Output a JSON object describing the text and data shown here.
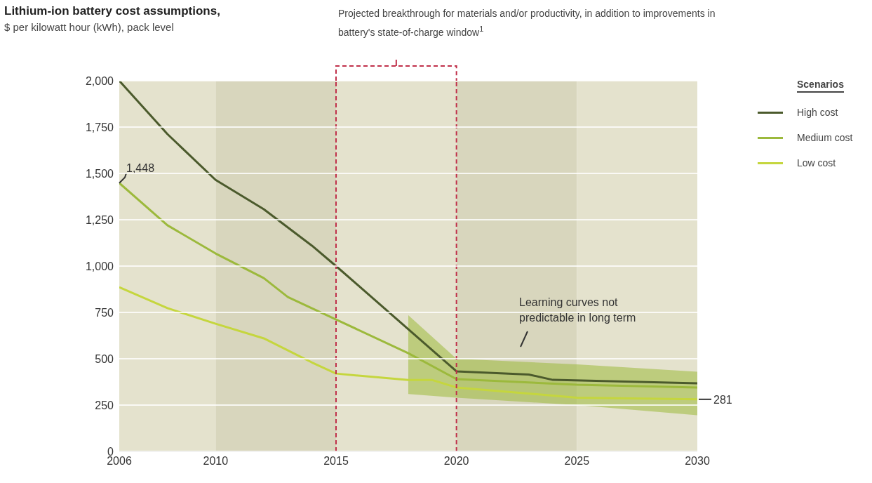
{
  "chart_data": {
    "type": "line",
    "title": "Lithium-ion battery cost assumptions,",
    "subtitle": "$ per kilowatt hour (kWh), pack level",
    "legend_title": "Scenarios",
    "legend": "top right",
    "grid": "y",
    "xlim": [
      2006,
      2030
    ],
    "xticks": [
      2006,
      2010,
      2015,
      2020,
      2025,
      2030
    ],
    "ylim": [
      0,
      2000
    ],
    "yticks": [
      0,
      250,
      500,
      750,
      {
        "value": 1000,
        "label": "1,000"
      },
      {
        "value": 1250,
        "label": "1,250"
      },
      {
        "value": 1500,
        "label": "1,500"
      },
      {
        "value": 1750,
        "label": "1,750"
      },
      {
        "value": 2000,
        "label": "2,000"
      }
    ],
    "series": [
      {
        "name": "High cost",
        "color": "#4b5a2c",
        "x": [
          2006,
          2008,
          2010,
          2012,
          2014,
          2015,
          2020,
          2023,
          2024,
          2030
        ],
        "values": [
          2000,
          1712,
          1465,
          1307,
          1110,
          1000,
          432,
          415,
          386,
          367
        ]
      },
      {
        "name": "Medium cost",
        "color": "#9cb93c",
        "x": [
          2006,
          2008,
          2010,
          2012,
          2013,
          2015,
          2018,
          2020,
          2025,
          2030
        ],
        "values": [
          1448,
          1220,
          1068,
          935,
          833,
          712,
          530,
          390,
          360,
          345
        ],
        "lower": [
          null,
          null,
          null,
          null,
          null,
          null,
          310,
          290,
          250,
          195
        ],
        "upper": [
          null,
          null,
          null,
          null,
          null,
          null,
          735,
          500,
          470,
          430
        ]
      },
      {
        "name": "Low cost",
        "color": "#c5d63e",
        "x": [
          2006,
          2008,
          2010,
          2012,
          2014,
          2015,
          2018,
          2019,
          2020,
          2025,
          2030
        ],
        "values": [
          886,
          773,
          689,
          610,
          480,
          420,
          385,
          385,
          345,
          290,
          281
        ]
      }
    ],
    "bands": [
      {
        "axis": "x",
        "from": 2006,
        "to": 2010,
        "color": "#e4e2cd"
      },
      {
        "axis": "x",
        "from": 2010,
        "to": 2015,
        "color": "#d8d6bd"
      },
      {
        "axis": "x",
        "from": 2015,
        "to": 2020,
        "color": "#e4e2cd"
      },
      {
        "axis": "x",
        "from": 2020,
        "to": 2025,
        "color": "#d8d6bd"
      },
      {
        "axis": "x",
        "from": 2025,
        "to": 2030,
        "color": "#e4e2cd"
      }
    ],
    "ref_lines": [
      {
        "axis": "x",
        "value": 2015,
        "color": "#c0304a",
        "line_style": "dashed"
      },
      {
        "axis": "x",
        "value": 2020,
        "color": "#c0304a",
        "line_style": "dashed"
      }
    ],
    "annotations": [
      "Projected breakthrough for materials and/or productivity, in addition to improvements in battery's state-of-charge window$^{1}$",
      {
        "text": "1,448",
        "x": 2006,
        "y": 1448
      },
      "Learning curves not predictable in long term",
      {
        "text": "281",
        "x": 2030,
        "y": 281
      }
    ]
  }
}
